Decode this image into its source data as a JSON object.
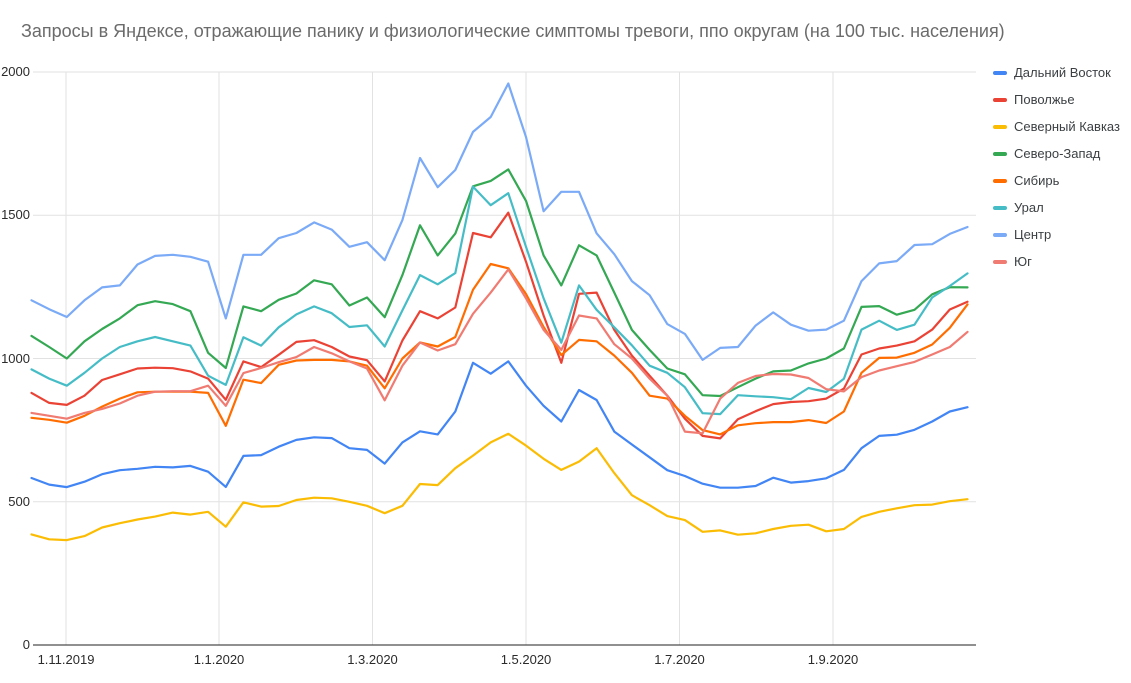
{
  "title": "Запросы в Яндексе, отражающие панику и физиологические симптомы тревоги, ппо округам (на 100 тыс. населения)",
  "chart_data": {
    "type": "line",
    "title": "Запросы в Яндексе, отражающие панику и физиологические симптомы тревоги, ппо округам (на 100 тыс. населения)",
    "x_axis": {
      "tick_labels": [
        "1.11.2019",
        "1.1.2020",
        "1.3.2020",
        "1.5.2020",
        "1.7.2020",
        "1.9.2020"
      ],
      "unit": "weekly data points"
    },
    "y_axis": {
      "ticks": [
        0,
        500,
        1000,
        1500,
        2000
      ],
      "ylim": [
        0,
        2000
      ]
    },
    "grid": true,
    "legend_position": "right",
    "n_points": 54,
    "series": [
      {
        "name": "Дальний Восток",
        "color": "#4285F4",
        "values": [
          583,
          560,
          551,
          570,
          596,
          610,
          615,
          622,
          620,
          625,
          605,
          552,
          660,
          663,
          692,
          716,
          725,
          722,
          687,
          681,
          633,
          707,
          746,
          735,
          815,
          985,
          947,
          990,
          905,
          835,
          780,
          890,
          855,
          745,
          700,
          655,
          610,
          590,
          563,
          549,
          549,
          555,
          584,
          567,
          572,
          582,
          611,
          687,
          730,
          734,
          751,
          780,
          815,
          830
        ]
      },
      {
        "name": "Поволжье",
        "color": "#EA4335",
        "values": [
          880,
          845,
          838,
          870,
          925,
          945,
          965,
          968,
          966,
          955,
          930,
          856,
          990,
          970,
          1013,
          1058,
          1064,
          1040,
          1007,
          994,
          920,
          1063,
          1165,
          1140,
          1178,
          1438,
          1423,
          1509,
          1338,
          1150,
          985,
          1226,
          1230,
          1100,
          1010,
          940,
          870,
          790,
          730,
          721,
          788,
          816,
          841,
          848,
          851,
          860,
          895,
          1014,
          1035,
          1045,
          1060,
          1101,
          1171,
          1198
        ]
      },
      {
        "name": "Северный Кавказ",
        "color": "#FBBC04",
        "values": [
          386,
          369,
          366,
          380,
          410,
          425,
          438,
          448,
          462,
          455,
          465,
          413,
          498,
          483,
          485,
          506,
          514,
          512,
          500,
          486,
          460,
          486,
          562,
          558,
          617,
          661,
          707,
          737,
          696,
          650,
          611,
          640,
          687,
          600,
          523,
          488,
          450,
          436,
          395,
          400,
          385,
          390,
          405,
          416,
          420,
          397,
          405,
          447,
          465,
          477,
          488,
          490,
          502,
          509
        ]
      },
      {
        "name": "Северо-Запад",
        "color": "#34A853",
        "values": [
          1079,
          1040,
          1000,
          1060,
          1103,
          1140,
          1186,
          1200,
          1190,
          1165,
          1020,
          967,
          1182,
          1165,
          1205,
          1227,
          1273,
          1259,
          1185,
          1213,
          1144,
          1291,
          1465,
          1360,
          1436,
          1601,
          1620,
          1660,
          1550,
          1360,
          1255,
          1395,
          1360,
          1230,
          1100,
          1030,
          965,
          945,
          872,
          869,
          900,
          930,
          955,
          958,
          983,
          1000,
          1035,
          1180,
          1183,
          1153,
          1170,
          1224,
          1249,
          1248
        ]
      },
      {
        "name": "Сибирь",
        "color": "#FF6D01",
        "values": [
          793,
          786,
          776,
          800,
          832,
          860,
          882,
          884,
          884,
          884,
          880,
          765,
          926,
          914,
          978,
          993,
          995,
          995,
          990,
          975,
          896,
          1000,
          1056,
          1042,
          1075,
          1240,
          1330,
          1315,
          1225,
          1110,
          1012,
          1065,
          1060,
          1010,
          950,
          870,
          860,
          800,
          750,
          735,
          767,
          774,
          778,
          778,
          785,
          775,
          815,
          950,
          1002,
          1003,
          1020,
          1049,
          1107,
          1189
        ]
      },
      {
        "name": "Урал",
        "color": "#46BDC6",
        "values": [
          962,
          930,
          905,
          950,
          1000,
          1040,
          1060,
          1075,
          1060,
          1045,
          940,
          908,
          1074,
          1045,
          1109,
          1154,
          1182,
          1158,
          1110,
          1116,
          1042,
          1168,
          1291,
          1259,
          1298,
          1600,
          1535,
          1577,
          1390,
          1210,
          1055,
          1255,
          1170,
          1109,
          1046,
          975,
          950,
          900,
          809,
          806,
          872,
          868,
          865,
          858,
          897,
          883,
          929,
          1101,
          1132,
          1100,
          1118,
          1213,
          1253,
          1297
        ]
      },
      {
        "name": "Центр",
        "color": "#7BAAF7",
        "values": [
          1203,
          1172,
          1145,
          1203,
          1248,
          1255,
          1328,
          1358,
          1362,
          1355,
          1338,
          1140,
          1362,
          1362,
          1420,
          1438,
          1475,
          1450,
          1390,
          1406,
          1343,
          1483,
          1700,
          1598,
          1658,
          1791,
          1843,
          1960,
          1773,
          1514,
          1582,
          1582,
          1437,
          1364,
          1270,
          1221,
          1120,
          1086,
          995,
          1037,
          1040,
          1115,
          1161,
          1118,
          1097,
          1101,
          1132,
          1270,
          1332,
          1340,
          1396,
          1399,
          1435,
          1459
        ]
      },
      {
        "name": "Юг",
        "color": "#F07B72",
        "values": [
          810,
          800,
          790,
          810,
          824,
          843,
          870,
          884,
          886,
          886,
          905,
          835,
          949,
          967,
          987,
          1005,
          1040,
          1018,
          990,
          965,
          854,
          975,
          1056,
          1028,
          1050,
          1156,
          1230,
          1311,
          1210,
          1100,
          1030,
          1150,
          1140,
          1050,
          1000,
          930,
          870,
          745,
          739,
          860,
          915,
          939,
          946,
          944,
          932,
          893,
          885,
          935,
          958,
          973,
          988,
          1014,
          1040,
          1093
        ]
      }
    ]
  }
}
